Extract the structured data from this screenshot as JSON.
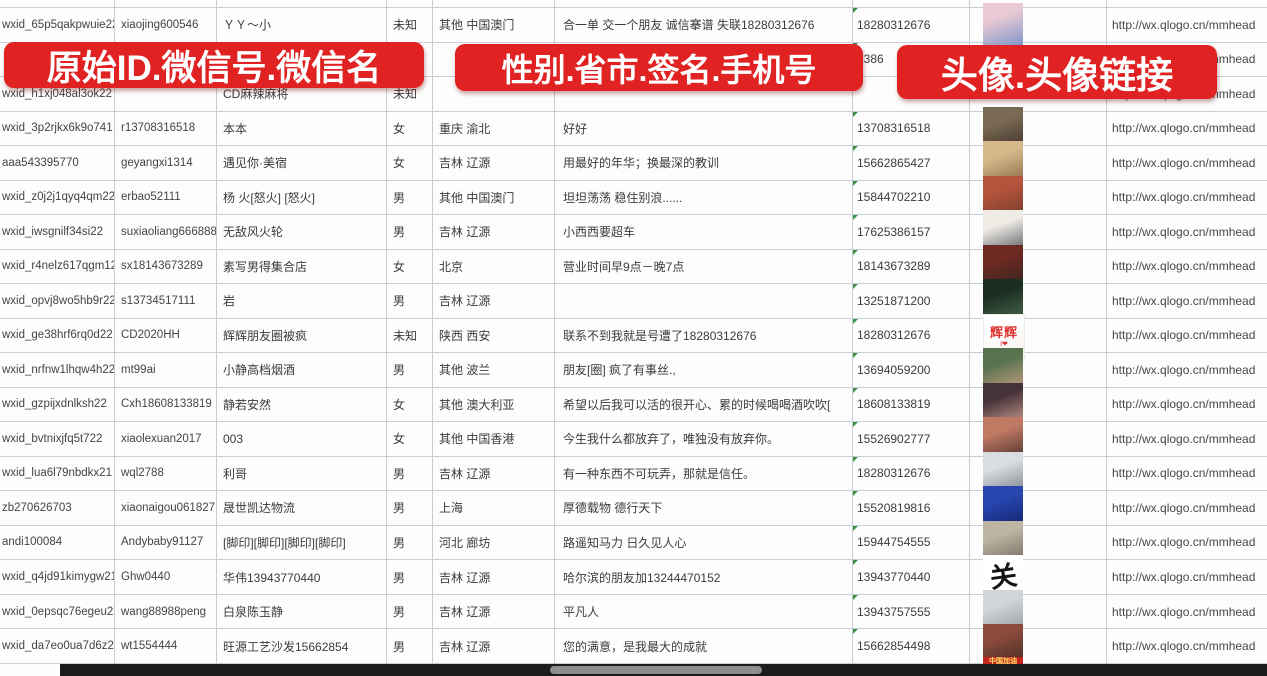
{
  "banners": [
    {
      "text": "原始ID.微信号.微信名"
    },
    {
      "text": "性别.省市.签名.手机号"
    },
    {
      "text": "头像.头像链接"
    }
  ],
  "colors": {
    "banner_red": "#e12222",
    "banner_text": "#ffffff",
    "grid_line": "#c6ccd4",
    "cell_text": "#3b3b3b",
    "error_triangle_green": "#3f9142",
    "scrollbar_track": "#1b1b1b",
    "scrollbar_handle": "#8d8d8d"
  },
  "columns": [
    "original-id",
    "wechat-id",
    "wechat-name",
    "gender",
    "province-city",
    "signature",
    "phone",
    "avatar",
    "avatar-url"
  ],
  "rows": [
    {
      "id": "wxid_65p5qakpwuie22",
      "wxid": "xiaojing600546",
      "name": "ＹＹ～小",
      "gender": "未知",
      "region": "其他 中国澳门",
      "signature": "合一单 交一个朋友 诚信搴谱 失联18280312676",
      "phone": "18280312676",
      "url": "http://wx.qlogo.cn/mmhead",
      "avatar": {
        "c1": "#e8c9d4",
        "c2": "#7d94c9"
      }
    },
    {
      "id": "",
      "wxid": "",
      "name": "",
      "gender": "",
      "region": "",
      "signature": "",
      "phone": "5386",
      "url": "http://wx.qlogo.cn/mmhead",
      "avatar": null
    },
    {
      "id": "wxid_h1xj048al3ok22",
      "wxid": "",
      "name": "CD麻辣麻将",
      "gender": "未知",
      "region": "",
      "signature": "",
      "phone": "",
      "url": "http://wx.qlogo.cn/mmhead",
      "avatar": null
    },
    {
      "id": "wxid_3p2rjkx6k9o741",
      "wxid": "r13708316518",
      "name": "本本",
      "gender": "女",
      "region": "重庆 渝北",
      "signature": "好好",
      "phone": "13708316518",
      "url": "http://wx.qlogo.cn/mmhead",
      "avatar": {
        "c1": "#7a6a55",
        "c2": "#3d3026"
      }
    },
    {
      "id": "aaa543395770",
      "wxid": "geyangxi1314",
      "name": "遇见你·美宿",
      "gender": "女",
      "region": "吉林 辽源",
      "signature": "用最好的年华；换最深的教训",
      "phone": "15662865427",
      "url": "http://wx.qlogo.cn/mmhead",
      "avatar": {
        "c1": "#d7b88a",
        "c2": "#8a6844"
      }
    },
    {
      "id": "wxid_z0j2j1qyq4qm22",
      "wxid": "erbao52111",
      "name": "杨 火[怒火] [怒火]",
      "gender": "男",
      "region": "其他 中国澳门",
      "signature": "坦坦荡荡 稳住别浪......",
      "phone": "15844702210",
      "url": "http://wx.qlogo.cn/mmhead",
      "avatar": {
        "c1": "#b5533c",
        "c2": "#6e3b2a"
      }
    },
    {
      "id": "wxid_iwsgnilf34si22",
      "wxid": "suxiaoliang666888",
      "name": "无敌风火轮",
      "gender": "男",
      "region": "吉林 辽源",
      "signature": "小西西要超车",
      "phone": "17625386157",
      "url": "http://wx.qlogo.cn/mmhead",
      "avatar": {
        "c1": "#efece6",
        "c2": "#55565e"
      }
    },
    {
      "id": "wxid_r4nelz617qgm12",
      "wxid": "sx18143673289",
      "name": "素写男得集合店",
      "gender": "女",
      "region": "北京",
      "signature": "营业时间早9点－晚7点",
      "phone": "18143673289",
      "url": "http://wx.qlogo.cn/mmhead",
      "avatar": {
        "c1": "#6e2a22",
        "c2": "#332520"
      }
    },
    {
      "id": "wxid_opvj8wo5hb9r22",
      "wxid": "s13734517111",
      "name": "岩",
      "gender": "男",
      "region": "吉林 辽源",
      "signature": "",
      "phone": "13251871200",
      "url": "http://wx.qlogo.cn/mmhead",
      "avatar": {
        "c1": "#1c2e24",
        "c2": "#4b6a4b"
      }
    },
    {
      "id": "wxid_ge38hrf6rq0d22",
      "wxid": "CD2020HH",
      "name": "辉辉朋友圈被疯",
      "gender": "未知",
      "region": "陕西 西安",
      "signature": "联系不到我就是号遭了18280312676",
      "phone": "18280312676",
      "url": "http://wx.qlogo.cn/mmhead",
      "avatar": {
        "c1": "#ffffff",
        "c2": "#f6f1ec",
        "label": "辉辉",
        "sub": "I❤",
        "style": "text-red"
      }
    },
    {
      "id": "wxid_nrfnw1lhqw4h22",
      "wxid": "mt99ai",
      "name": "小静高档烟酒",
      "gender": "男",
      "region": "其他 波兰",
      "signature": "朋友[圈] 疯了有事丝.,",
      "phone": "13694059200",
      "url": "http://wx.qlogo.cn/mmhead",
      "avatar": {
        "c1": "#57724f",
        "c2": "#caa183"
      }
    },
    {
      "id": "wxid_gzpijxdnlksh22",
      "wxid": "Cxh18608133819",
      "name": "静若安然",
      "gender": "女",
      "region": "其他 澳大利亚",
      "signature": "希望以后我可以活的很开心、累的时候喝喝酒吹吹[",
      "phone": "18608133819",
      "url": "http://wx.qlogo.cn/mmhead",
      "avatar": {
        "c1": "#46333a",
        "c2": "#d1a393"
      }
    },
    {
      "id": "wxid_bvtnixjfq5t722",
      "wxid": "xiaolexuan2017",
      "name": "003",
      "gender": "女",
      "region": "其他 中国香港",
      "signature": "今生我什么都放弃了，唯独没有放弃你。",
      "phone": "15526902777",
      "url": "http://wx.qlogo.cn/mmhead",
      "avatar": {
        "c1": "#c07a64",
        "c2": "#4a2f2b"
      }
    },
    {
      "id": "wxid_lua6l79nbdkx21",
      "wxid": "wql2788",
      "name": "利哥",
      "gender": "男",
      "region": "吉林 辽源",
      "signature": "有一种东西不可玩弄，那就是信任。",
      "phone": "18280312676",
      "url": "http://wx.qlogo.cn/mmhead",
      "avatar": {
        "c1": "#d9dde1",
        "c2": "#777e87"
      }
    },
    {
      "id": "zb270626703",
      "wxid": "xiaonaigou061827",
      "name": "晟世凯达物流",
      "gender": "男",
      "region": "上海",
      "signature": "厚德载物 德行天下",
      "phone": "15520819816",
      "url": "http://wx.qlogo.cn/mmhead",
      "avatar": {
        "c1": "#2746b0",
        "c2": "#101f66"
      }
    },
    {
      "id": "andi100084",
      "wxid": "Andybaby91127",
      "name": "[脚印][脚印][脚印][脚印]",
      "gender": "男",
      "region": "河北 廊坊",
      "signature": "路遥知马力 日久见人心",
      "phone": "15944754555",
      "url": "http://wx.qlogo.cn/mmhead",
      "avatar": {
        "c1": "#bdb4a2",
        "c2": "#6f675c"
      }
    },
    {
      "id": "wxid_q4jd91kimygw21",
      "wxid": "Ghw0440",
      "name": "华伟13943770440",
      "gender": "男",
      "region": "吉林 辽源",
      "signature": "哈尔滨的朋友加13244470152",
      "phone": "13943770440",
      "url": "http://wx.qlogo.cn/mmhead",
      "avatar": {
        "c1": "#ffffff",
        "c2": "#fbfbfb",
        "label": "关",
        "style": "calligraphy"
      }
    },
    {
      "id": "wxid_0epsqc76egeu22",
      "wxid": "wang88988peng",
      "name": "白泉陈玉静",
      "gender": "男",
      "region": "吉林 辽源",
      "signature": "平凡人",
      "phone": "13943757555",
      "url": "http://wx.qlogo.cn/mmhead",
      "avatar": {
        "c1": "#d2d6da",
        "c2": "#95999d"
      }
    },
    {
      "id": "wxid_da7eo0ua7d6z22",
      "wxid": "wt1554444",
      "name": "旺源工艺沙发15662854",
      "gender": "男",
      "region": "吉林 辽源",
      "signature": "您的满意，是我最大的成就",
      "phone": "15662854498",
      "url": "http://wx.qlogo.cn/mmhead",
      "avatar": {
        "c1": "#8a4a3c",
        "c2": "#3c2822",
        "label": "中国加油",
        "style": "banner-red"
      }
    }
  ]
}
